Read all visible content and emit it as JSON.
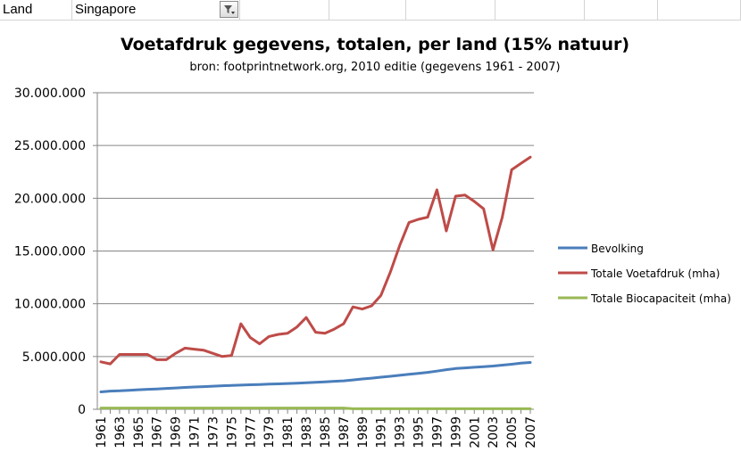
{
  "sheet": {
    "label_cell": "Land",
    "value_cell": "Singapore",
    "filter_icon": "filter-dropdown-icon"
  },
  "chart_data": {
    "type": "line",
    "title": "Voetafdruk gegevens, totalen, per land (15% natuur)",
    "subtitle": "bron: footprintnetwork.org, 2010 editie (gegevens 1961 - 2007)",
    "xlabel": "",
    "ylabel": "",
    "ylim": [
      0,
      30000000
    ],
    "yticks": [
      "0",
      "5.000.000",
      "10.000.000",
      "15.000.000",
      "20.000.000",
      "25.000.000",
      "30.000.000"
    ],
    "xticks": [
      "1961",
      "1963",
      "1965",
      "1967",
      "1969",
      "1971",
      "1973",
      "1975",
      "1977",
      "1979",
      "1981",
      "1983",
      "1985",
      "1987",
      "1989",
      "1991",
      "1993",
      "1995",
      "1997",
      "1999",
      "2001",
      "2003",
      "2005",
      "2007"
    ],
    "x": [
      1961,
      1962,
      1963,
      1964,
      1965,
      1966,
      1967,
      1968,
      1969,
      1970,
      1971,
      1972,
      1973,
      1974,
      1975,
      1976,
      1977,
      1978,
      1979,
      1980,
      1981,
      1982,
      1983,
      1984,
      1985,
      1986,
      1987,
      1988,
      1989,
      1990,
      1991,
      1992,
      1993,
      1994,
      1995,
      1996,
      1997,
      1998,
      1999,
      2000,
      2001,
      2002,
      2003,
      2004,
      2005,
      2006,
      2007
    ],
    "grid": true,
    "legend": "right",
    "series": [
      {
        "name": "Bevolking",
        "color": "#4a7ebb",
        "values": [
          1650000,
          1720000,
          1750000,
          1800000,
          1850000,
          1890000,
          1930000,
          1980000,
          2020000,
          2070000,
          2110000,
          2150000,
          2190000,
          2230000,
          2260000,
          2290000,
          2320000,
          2350000,
          2380000,
          2410000,
          2440000,
          2470000,
          2510000,
          2560000,
          2600000,
          2650000,
          2700000,
          2780000,
          2870000,
          2950000,
          3040000,
          3130000,
          3220000,
          3310000,
          3400000,
          3500000,
          3620000,
          3750000,
          3860000,
          3920000,
          3980000,
          4040000,
          4100000,
          4180000,
          4270000,
          4370000,
          4440000
        ]
      },
      {
        "name": "Totale Voetafdruk (mha)",
        "color": "#be4b48",
        "values": [
          4500000,
          4300000,
          5200000,
          5200000,
          5200000,
          5200000,
          4700000,
          4700000,
          5300000,
          5800000,
          5700000,
          5600000,
          5300000,
          5000000,
          5100000,
          8100000,
          6800000,
          6200000,
          6900000,
          7100000,
          7200000,
          7800000,
          8700000,
          7300000,
          7200000,
          7600000,
          8100000,
          9700000,
          9500000,
          9800000,
          10800000,
          13000000,
          15500000,
          17700000,
          18000000,
          18200000,
          20800000,
          16900000,
          20200000,
          20300000,
          19700000,
          19000000,
          15100000,
          18200000,
          22700000,
          23300000,
          23900000
        ]
      },
      {
        "name": "Totale Biocapaciteit  (mha)",
        "color": "#98b954",
        "values": [
          120000,
          120000,
          120000,
          120000,
          120000,
          120000,
          120000,
          120000,
          120000,
          120000,
          120000,
          120000,
          120000,
          120000,
          120000,
          120000,
          120000,
          120000,
          120000,
          120000,
          120000,
          120000,
          120000,
          120000,
          120000,
          120000,
          120000,
          50000,
          50000,
          50000,
          50000,
          50000,
          50000,
          50000,
          50000,
          50000,
          50000,
          50000,
          50000,
          50000,
          50000,
          50000,
          50000,
          50000,
          50000,
          50000,
          50000
        ]
      }
    ]
  }
}
